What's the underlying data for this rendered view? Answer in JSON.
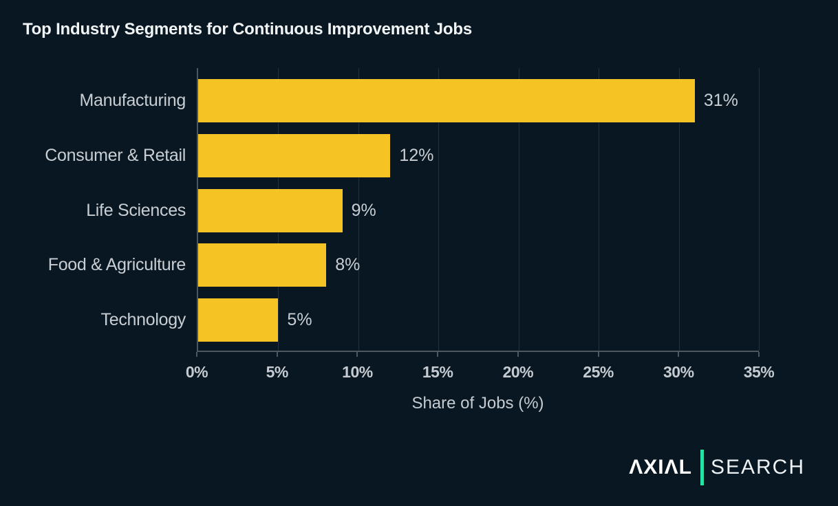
{
  "title": "Top Industry Segments for Continuous Improvement Jobs",
  "chart_data": {
    "type": "bar",
    "orientation": "horizontal",
    "title": "Top Industry Segments for Continuous Improvement Jobs",
    "categories": [
      "Manufacturing",
      "Consumer & Retail",
      "Life Sciences",
      "Food & Agriculture",
      "Technology"
    ],
    "values": [
      31,
      12,
      9,
      8,
      5
    ],
    "value_labels": [
      "31%",
      "12%",
      "9%",
      "8%",
      "5%"
    ],
    "xlabel": "Share of Jobs (%)",
    "ylabel": "",
    "xlim": [
      0,
      35
    ],
    "xtick_values": [
      0,
      5,
      10,
      15,
      20,
      25,
      30,
      35
    ],
    "xtick_labels": [
      "0%",
      "5%",
      "10%",
      "15%",
      "20%",
      "25%",
      "30%",
      "35%"
    ],
    "grid": true,
    "legend": false,
    "bar_color": "#f5c323"
  },
  "colors": {
    "background": "#081722",
    "bar": "#f5c323",
    "title_text": "#f1f4f5",
    "label_text": "#c9ced3",
    "gridline": "#223040",
    "axis": "#4d5861",
    "logo_divider": "#2be0a6"
  },
  "logo": {
    "left": "AXIAL",
    "left_display": "ΛXIΛL",
    "right": "SEARCH"
  }
}
